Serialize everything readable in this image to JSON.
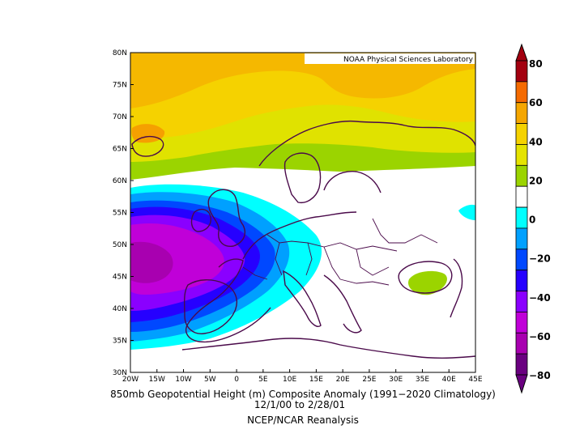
{
  "map": {
    "credit": "NOAA Physical Sciences Laboratory",
    "lat_labels": [
      "80N",
      "75N",
      "70N",
      "65N",
      "60N",
      "55N",
      "50N",
      "45N",
      "40N",
      "35N",
      "30N"
    ],
    "lon_labels": [
      "20W",
      "15W",
      "10W",
      "5W",
      "0",
      "5E",
      "10E",
      "15E",
      "20E",
      "25E",
      "30E",
      "35E",
      "40E",
      "45E"
    ],
    "caption": {
      "line1": "850mb Geopotential Height (m) Composite Anomaly (1991−2020 Climatology)",
      "line2": "12/1/00  to 2/28/01",
      "line3": "NCEP/NCAR Reanalysis"
    },
    "colorbar": {
      "labels": [
        "80",
        "60",
        "40",
        "20",
        "0",
        "−20",
        "−40",
        "−60",
        "−80"
      ],
      "colors": [
        "#a3000f",
        "#f56a00",
        "#f5a600",
        "#f5d200",
        "#e5e300",
        "#9bd400",
        "#ffffff",
        "#00ffff",
        "#00a0ff",
        "#0048ff",
        "#2600ff",
        "#8a00ff",
        "#c000d8",
        "#a800b0",
        "#6a0080"
      ]
    },
    "boundary_color": "#4a0a4a"
  }
}
